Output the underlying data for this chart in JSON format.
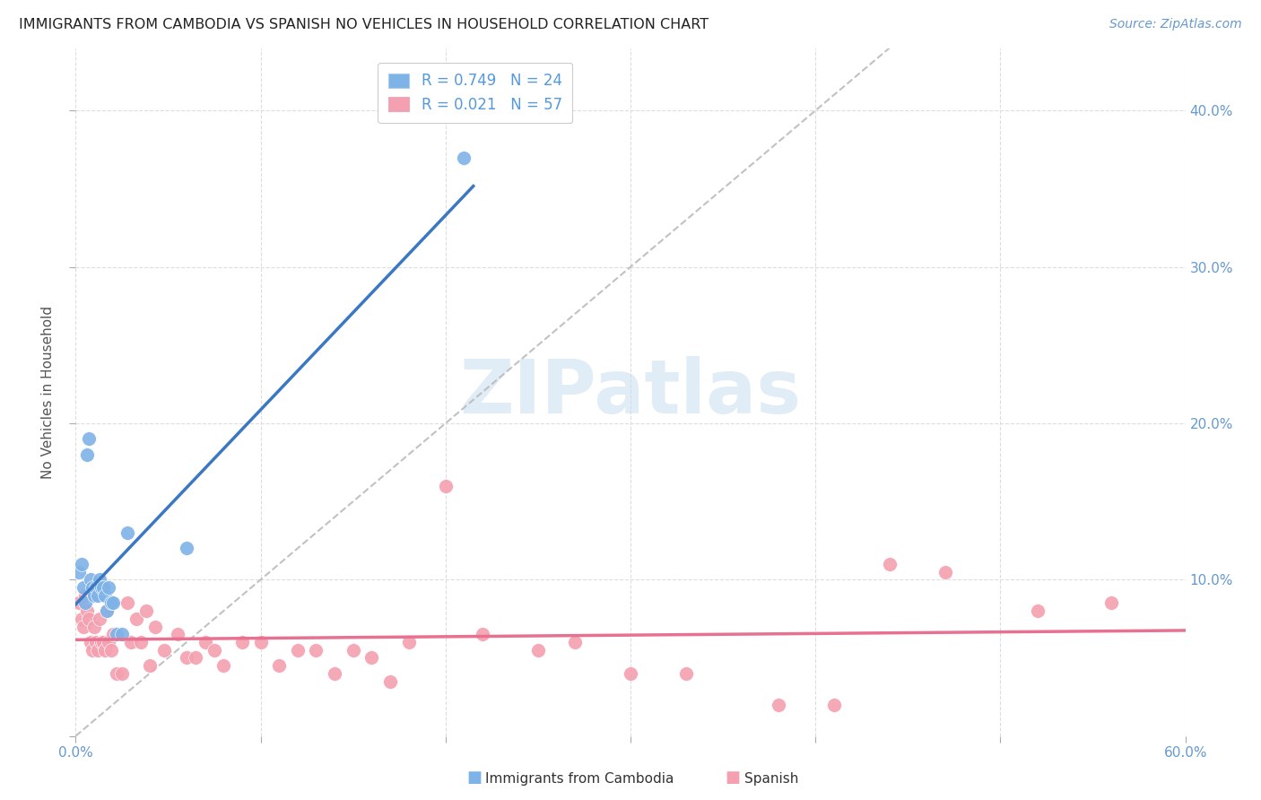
{
  "title": "IMMIGRANTS FROM CAMBODIA VS SPANISH NO VEHICLES IN HOUSEHOLD CORRELATION CHART",
  "source": "Source: ZipAtlas.com",
  "ylabel": "No Vehicles in Household",
  "xlim": [
    0.0,
    0.6
  ],
  "ylim": [
    0.0,
    0.44
  ],
  "yticks": [
    0.0,
    0.1,
    0.2,
    0.3,
    0.4
  ],
  "xticks": [
    0.0,
    0.1,
    0.2,
    0.3,
    0.4,
    0.5,
    0.6
  ],
  "cambodia_R": 0.749,
  "cambodia_N": 24,
  "spanish_R": 0.021,
  "spanish_N": 57,
  "cambodia_color": "#7EB3E8",
  "spanish_color": "#F4A0B0",
  "cambodia_line_color": "#3B78C3",
  "spanish_line_color": "#E87090",
  "diagonal_color": "#BBBBBB",
  "background_color": "#FFFFFF",
  "watermark": "ZIPatlas",
  "tick_color": "#6699CC",
  "label_color": "#555555",
  "legend_text_color": "#5599DD",
  "cambodia_points_x": [
    0.002,
    0.003,
    0.004,
    0.005,
    0.006,
    0.007,
    0.008,
    0.009,
    0.01,
    0.011,
    0.012,
    0.013,
    0.014,
    0.015,
    0.016,
    0.017,
    0.018,
    0.019,
    0.02,
    0.022,
    0.025,
    0.028,
    0.06,
    0.21
  ],
  "cambodia_points_y": [
    0.105,
    0.11,
    0.095,
    0.085,
    0.18,
    0.19,
    0.1,
    0.095,
    0.09,
    0.095,
    0.09,
    0.1,
    0.095,
    0.095,
    0.09,
    0.08,
    0.095,
    0.085,
    0.085,
    0.065,
    0.065,
    0.13,
    0.12,
    0.37
  ],
  "spanish_points_x": [
    0.002,
    0.003,
    0.004,
    0.005,
    0.006,
    0.007,
    0.008,
    0.009,
    0.01,
    0.011,
    0.012,
    0.013,
    0.014,
    0.015,
    0.016,
    0.017,
    0.018,
    0.019,
    0.02,
    0.022,
    0.025,
    0.028,
    0.03,
    0.033,
    0.035,
    0.038,
    0.04,
    0.043,
    0.048,
    0.055,
    0.06,
    0.065,
    0.07,
    0.075,
    0.08,
    0.09,
    0.1,
    0.11,
    0.12,
    0.13,
    0.14,
    0.15,
    0.16,
    0.17,
    0.18,
    0.2,
    0.22,
    0.25,
    0.27,
    0.3,
    0.33,
    0.38,
    0.41,
    0.44,
    0.47,
    0.52,
    0.56
  ],
  "spanish_points_y": [
    0.085,
    0.075,
    0.07,
    0.09,
    0.08,
    0.075,
    0.06,
    0.055,
    0.07,
    0.06,
    0.055,
    0.075,
    0.06,
    0.06,
    0.055,
    0.08,
    0.06,
    0.055,
    0.065,
    0.04,
    0.04,
    0.085,
    0.06,
    0.075,
    0.06,
    0.08,
    0.045,
    0.07,
    0.055,
    0.065,
    0.05,
    0.05,
    0.06,
    0.055,
    0.045,
    0.06,
    0.06,
    0.045,
    0.055,
    0.055,
    0.04,
    0.055,
    0.05,
    0.035,
    0.06,
    0.16,
    0.065,
    0.055,
    0.06,
    0.04,
    0.04,
    0.02,
    0.02,
    0.11,
    0.105,
    0.08,
    0.085
  ]
}
